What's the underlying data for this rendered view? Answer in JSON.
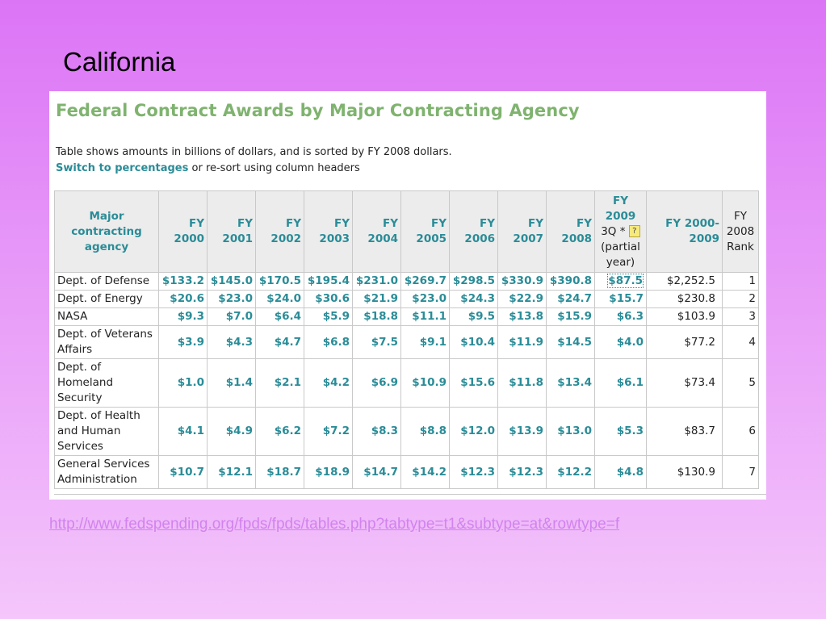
{
  "slide_title": "California",
  "panel": {
    "heading": "Federal Contract Awards by Major Contracting Agency",
    "description": "Table shows amounts in billions of dollars, and is sorted by FY 2008 dollars.",
    "switch_link": "Switch to percentages",
    "resort_text": " or re-sort using column headers"
  },
  "table": {
    "headers": {
      "agency": "Major contracting agency",
      "fy2000": "FY 2000",
      "fy2001": "FY 2001",
      "fy2002": "FY 2002",
      "fy2003": "FY 2003",
      "fy2004": "FY 2004",
      "fy2005": "FY 2005",
      "fy2006": "FY 2006",
      "fy2007": "FY 2007",
      "fy2008": "FY 2008",
      "fy2009_top": "FY 2009",
      "fy2009_q": "3Q *",
      "fy2009_help": "?",
      "fy2009_partial": "(partial year)",
      "total": "FY 2000-2009",
      "rank": "FY 2008 Rank"
    },
    "rows": [
      {
        "agency": "Dept. of Defense",
        "v": [
          "$133.2",
          "$145.0",
          "$170.5",
          "$195.4",
          "$231.0",
          "$269.7",
          "$298.5",
          "$330.9",
          "$390.8"
        ],
        "fy2009": "$87.5",
        "total": "$2,252.5",
        "rank": "1"
      },
      {
        "agency": "Dept. of Energy",
        "v": [
          "$20.6",
          "$23.0",
          "$24.0",
          "$30.6",
          "$21.9",
          "$23.0",
          "$24.3",
          "$22.9",
          "$24.7"
        ],
        "fy2009": "$15.7",
        "total": "$230.8",
        "rank": "2"
      },
      {
        "agency": "NASA",
        "v": [
          "$9.3",
          "$7.0",
          "$6.4",
          "$5.9",
          "$18.8",
          "$11.1",
          "$9.5",
          "$13.8",
          "$15.9"
        ],
        "fy2009": "$6.3",
        "total": "$103.9",
        "rank": "3"
      },
      {
        "agency": "Dept. of Veterans Affairs",
        "v": [
          "$3.9",
          "$4.3",
          "$4.7",
          "$6.8",
          "$7.5",
          "$9.1",
          "$10.4",
          "$11.9",
          "$14.5"
        ],
        "fy2009": "$4.0",
        "total": "$77.2",
        "rank": "4"
      },
      {
        "agency": "Dept. of Homeland Security",
        "v": [
          "$1.0",
          "$1.4",
          "$2.1",
          "$4.2",
          "$6.9",
          "$10.9",
          "$15.6",
          "$11.8",
          "$13.4"
        ],
        "fy2009": "$6.1",
        "total": "$73.4",
        "rank": "5"
      },
      {
        "agency": "Dept. of Health and Human Services",
        "v": [
          "$4.1",
          "$4.9",
          "$6.2",
          "$7.2",
          "$8.3",
          "$8.8",
          "$12.0",
          "$13.9",
          "$13.0"
        ],
        "fy2009": "$5.3",
        "total": "$83.7",
        "rank": "6"
      },
      {
        "agency": "General Services Administration",
        "v": [
          "$10.7",
          "$12.1",
          "$18.7",
          "$18.9",
          "$14.7",
          "$14.2",
          "$12.3",
          "$12.3",
          "$12.2"
        ],
        "fy2009": "$4.8",
        "total": "$130.9",
        "rank": "7"
      }
    ]
  },
  "source_link": "http://www.fedspending.org/fpds/fpds/tables.php?tabtype=t1&subtype=at&rowtype=f",
  "colors": {
    "background_top": "#dc74f6",
    "background_bottom": "#f4c6fb",
    "heading_green": "#7fb36f",
    "value_teal": "#2a8c97",
    "link_pink": "#d183ee"
  }
}
